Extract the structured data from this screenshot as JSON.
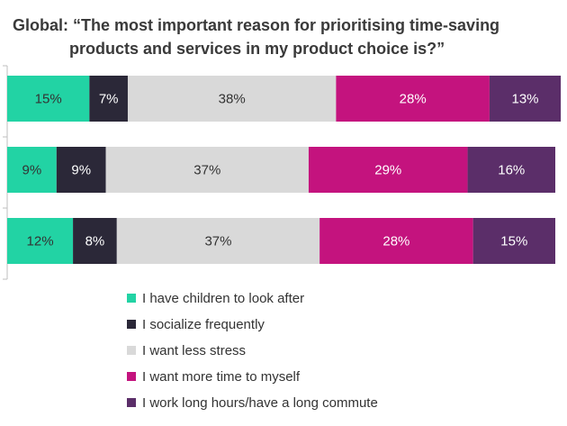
{
  "chart_data": {
    "type": "bar",
    "orientation": "horizontal",
    "stacked": true,
    "normalized": true,
    "title": "Global: “The most important reason for prioritising time-saving products and services in my product choice is?”",
    "title_lines": [
      "Global: “The most important reason for prioritising time-saving",
      "products and services in my product choice is?”"
    ],
    "categories": [
      "",
      "",
      ""
    ],
    "xlabel": "",
    "ylabel": "",
    "xlim": [
      0,
      100
    ],
    "grid": false,
    "legend_position": "bottom",
    "series": [
      {
        "name": "I have children to look after",
        "color": "#22d3a4",
        "label_color": "#333333",
        "values": [
          15,
          9,
          12
        ],
        "labels": [
          "15%",
          "9%",
          "12%"
        ]
      },
      {
        "name": "I socialize frequently",
        "color": "#2b2838",
        "label_color": "#ffffff",
        "values": [
          7,
          9,
          8
        ],
        "labels": [
          "7%",
          "9%",
          "8%"
        ]
      },
      {
        "name": "I want less stress",
        "color": "#d9d9d9",
        "label_color": "#333333",
        "values": [
          38,
          37,
          37
        ],
        "labels": [
          "38%",
          "37%",
          "37%"
        ]
      },
      {
        "name": "I want more time to myself",
        "color": "#c4137e",
        "label_color": "#ffffff",
        "values": [
          28,
          29,
          28
        ],
        "labels": [
          "28%",
          "29%",
          "28%"
        ]
      },
      {
        "name": "I work long hours/have a long commute",
        "color": "#5b2e69",
        "label_color": "#ffffff",
        "values": [
          13,
          16,
          15
        ],
        "labels": [
          "13%",
          "16%",
          "15%"
        ]
      }
    ]
  }
}
